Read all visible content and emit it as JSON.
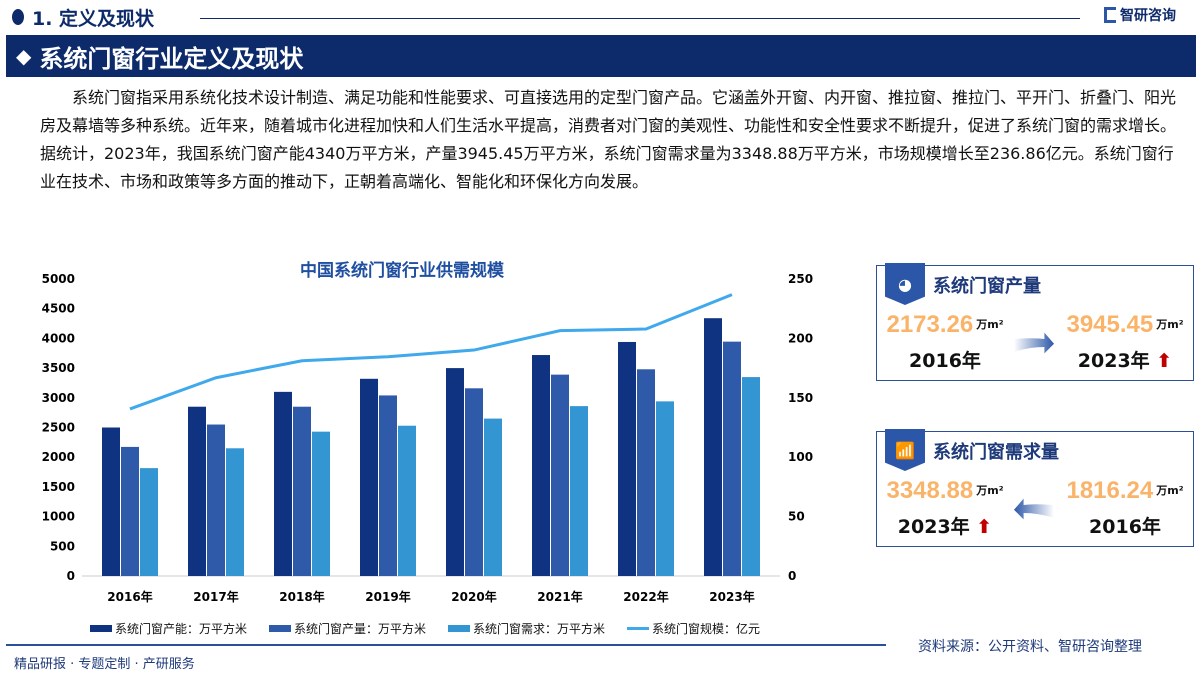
{
  "header": {
    "section": "1. 定义及现状",
    "brand": "智研咨询",
    "banner": "系统门窗行业定义及现状"
  },
  "paragraph": "系统门窗指采用系统化技术设计制造、满足功能和性能要求、可直接选用的定型门窗产品。它涵盖外开窗、内开窗、推拉窗、推拉门、平开门、折叠门、阳光房及幕墙等多种系统。近年来，随着城市化进程加快和人们生活水平提高，消费者对门窗的美观性、功能性和安全性要求不断提升，促进了系统门窗的需求增长。据统计，2023年，我国系统门窗产能4340万平方米，产量3945.45万平方米，系统门窗需求量为3348.88万平方米，市场规模增长至236.86亿元。系统门窗行业在技术、市场和政策等多方面的推动下，正朝着高端化、智能化和环保化方向发展。",
  "chart_data": {
    "type": "bar",
    "title": "中国系统门窗行业供需规模",
    "categories": [
      "2016年",
      "2017年",
      "2018年",
      "2019年",
      "2020年",
      "2021年",
      "2022年",
      "2023年"
    ],
    "ylim": [
      0,
      5000
    ],
    "y_ticks": [
      "0",
      "500",
      "1000",
      "1500",
      "2000",
      "2500",
      "3000",
      "3500",
      "4000",
      "4500",
      "5000"
    ],
    "y2lim": [
      0,
      250
    ],
    "y2_ticks": [
      "0",
      "50",
      "100",
      "150",
      "200",
      "250"
    ],
    "grid": false,
    "legend": "bottom",
    "series": [
      {
        "name": "系统门窗产能：万平方米",
        "type": "bar",
        "axis": "left",
        "color": "#0f3380",
        "values": [
          2500,
          2850,
          3100,
          3320,
          3500,
          3720,
          3940,
          4340
        ]
      },
      {
        "name": "系统门窗产量：万平方米",
        "type": "bar",
        "axis": "left",
        "color": "#2f5aaa",
        "values": [
          2173.26,
          2550,
          2850,
          3040,
          3160,
          3390,
          3480,
          3945.45
        ]
      },
      {
        "name": "系统门窗需求：万平方米",
        "type": "bar",
        "axis": "left",
        "color": "#3396d3",
        "values": [
          1816.24,
          2150,
          2430,
          2530,
          2650,
          2860,
          2940,
          3348.88
        ]
      },
      {
        "name": "系统门窗规模：亿元",
        "type": "line",
        "axis": "right",
        "color": "#3fa9ec",
        "values": [
          140.6,
          166.9,
          181.2,
          184.6,
          190.2,
          206.5,
          207.9,
          236.86
        ]
      }
    ]
  },
  "cards": [
    {
      "title": "系统门窗产量",
      "icon": "pie-chart-icon",
      "from_value": "2173.26",
      "from_year": "2016年",
      "to_value": "3945.45",
      "to_year": "2023年",
      "unit": "万m²"
    },
    {
      "title": "系统门窗需求量",
      "icon": "bar-growth-icon",
      "from_value": "1816.24",
      "from_year": "2016年",
      "to_value": "3348.88",
      "to_year": "2023年",
      "unit": "万m²"
    }
  ],
  "footer": {
    "source": "资料来源：公开资料、智研咨询整理",
    "tagline": "精品研报 · 专题定制 · 产研服务"
  }
}
